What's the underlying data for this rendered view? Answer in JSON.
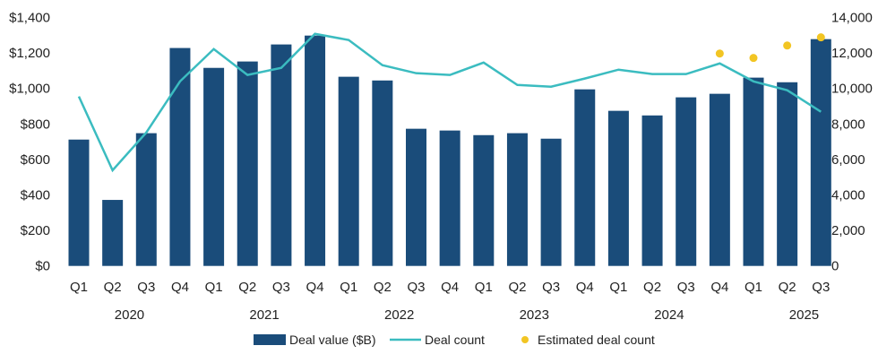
{
  "chart_data": {
    "type": "bar+line",
    "categories": [
      "Q1",
      "Q2",
      "Q3",
      "Q4",
      "Q1",
      "Q2",
      "Q3",
      "Q4",
      "Q1",
      "Q2",
      "Q3",
      "Q4",
      "Q1",
      "Q2",
      "Q3",
      "Q4",
      "Q1",
      "Q2",
      "Q3",
      "Q4",
      "Q1",
      "Q2",
      "Q3"
    ],
    "years": [
      {
        "label": "2020",
        "start": 0,
        "end": 3
      },
      {
        "label": "2021",
        "start": 4,
        "end": 7
      },
      {
        "label": "2022",
        "start": 8,
        "end": 11
      },
      {
        "label": "2023",
        "start": 12,
        "end": 15
      },
      {
        "label": "2024",
        "start": 16,
        "end": 19
      },
      {
        "label": "2025",
        "start": 20,
        "end": 22
      }
    ],
    "series": [
      {
        "name": "Deal value ($B)",
        "type": "bar",
        "axis": "left",
        "color": "#1a4c7a",
        "values": [
          712,
          372,
          748,
          1228,
          1116,
          1152,
          1248,
          1298,
          1066,
          1045,
          773,
          763,
          737,
          748,
          717,
          995,
          874,
          848,
          950,
          970,
          1061,
          1035,
          1278
        ]
      },
      {
        "name": "Deal count",
        "type": "line",
        "axis": "right",
        "color": "#3bbcc0",
        "values": [
          9550,
          5390,
          7520,
          10400,
          12220,
          10760,
          11160,
          13080,
          12730,
          11310,
          10860,
          10760,
          11460,
          10200,
          10100,
          10560,
          11060,
          10810,
          10810,
          11410,
          10400,
          9900,
          8690
        ]
      },
      {
        "name": "Estimated deal count",
        "type": "scatter",
        "axis": "right",
        "color": "#f2c523",
        "values": [
          null,
          null,
          null,
          null,
          null,
          null,
          null,
          null,
          null,
          null,
          null,
          null,
          null,
          null,
          null,
          null,
          null,
          null,
          null,
          11970,
          11720,
          12420,
          12880
        ]
      }
    ],
    "left_axis": {
      "ylim": [
        0,
        1400
      ],
      "ticks": [
        0,
        200,
        400,
        600,
        800,
        1000,
        1200,
        1400
      ],
      "tick_labels": [
        "$0",
        "$200",
        "$400",
        "$600",
        "$800",
        "$1,000",
        "$1,200",
        "$1,400"
      ]
    },
    "right_axis": {
      "ylim": [
        0,
        14000
      ],
      "ticks": [
        0,
        2000,
        4000,
        6000,
        8000,
        10000,
        12000,
        14000
      ],
      "tick_labels": [
        "0",
        "2,000",
        "4,000",
        "6,000",
        "8,000",
        "10,000",
        "12,000",
        "14,000"
      ]
    },
    "grid": false,
    "legend_position": "bottom"
  }
}
